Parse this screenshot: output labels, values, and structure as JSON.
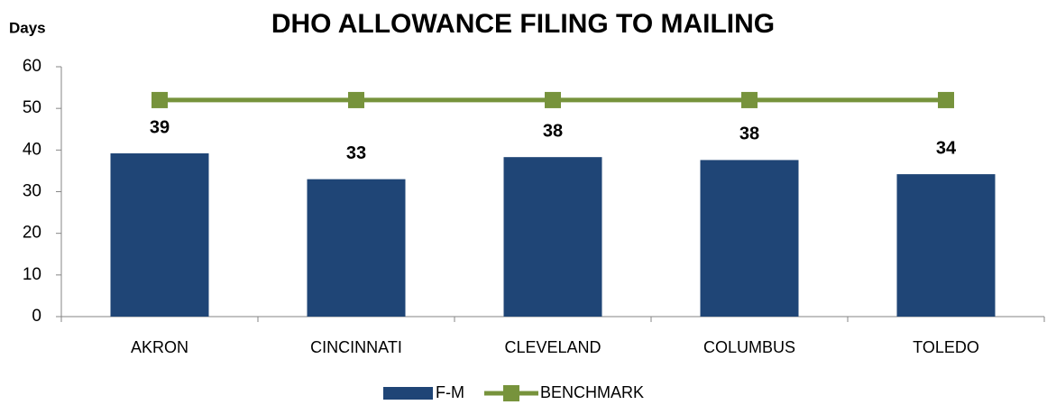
{
  "chart_data": {
    "type": "bar",
    "title": "DHO ALLOWANCE FILING TO MAILING",
    "y_label": "Days",
    "categories": [
      "AKRON",
      "CINCINNATI",
      "CLEVELAND",
      "COLUMBUS",
      "TOLEDO"
    ],
    "series": [
      {
        "name": "F-M",
        "type": "bar",
        "color": "#1f4576",
        "values": [
          39.2,
          33.0,
          38.3,
          37.6,
          34.2
        ],
        "value_labels": [
          "39",
          "33",
          "38",
          "38",
          "34"
        ]
      },
      {
        "name": "BENCHMARK",
        "type": "line",
        "color": "#77933c",
        "values": [
          52,
          52,
          52,
          52,
          52
        ]
      }
    ],
    "ylim": [
      0,
      60
    ],
    "yticks": [
      0,
      10,
      20,
      30,
      40,
      50,
      60
    ],
    "legend": "bottom"
  }
}
